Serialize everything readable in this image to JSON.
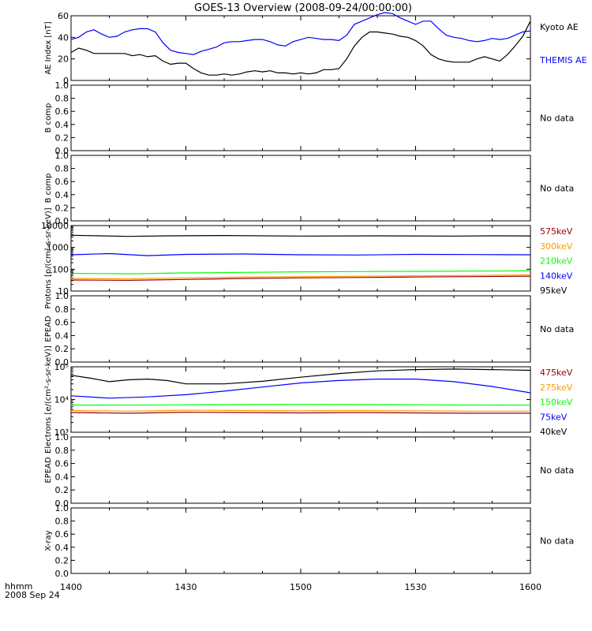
{
  "title": "GOES-13 Overview (2008-09-24/00:00:00)",
  "time_axis": {
    "ticks": [
      "1400",
      "1430",
      "1500",
      "1530",
      "1600"
    ],
    "corner_label_1": "hhmm",
    "corner_label_2": "2008 Sep 24"
  },
  "colors": {
    "black": "#000000",
    "blue": "#0000ff",
    "green": "#00ff00",
    "orange": "#ff9900",
    "red": "#ff0000",
    "darkred": "#990000"
  },
  "chart_data": [
    {
      "type": "line",
      "ylabel": "AE Index [nT]",
      "ylim": [
        0,
        60
      ],
      "yticks": [
        "0",
        "20",
        "40",
        "60"
      ],
      "x_range_minutes": [
        0,
        120
      ],
      "legend": [
        {
          "label": "Kyoto AE",
          "color": "#000000"
        },
        {
          "label": "THEMIS AE",
          "color": "#0000ff"
        }
      ],
      "series": [
        {
          "name": "Kyoto AE",
          "color": "#000000",
          "x": [
            0,
            2,
            4,
            6,
            8,
            10,
            12,
            14,
            16,
            18,
            20,
            22,
            24,
            26,
            28,
            30,
            32,
            34,
            36,
            38,
            40,
            42,
            44,
            46,
            48,
            50,
            52,
            54,
            56,
            58,
            60,
            62,
            64,
            66,
            68,
            70,
            72,
            74,
            76,
            78,
            80,
            82,
            84,
            86,
            88,
            90,
            92,
            94,
            96,
            98,
            100,
            102,
            104,
            106,
            108,
            110,
            112,
            114,
            116,
            118,
            120
          ],
          "y": [
            26,
            30,
            28,
            25,
            25,
            25,
            25,
            25,
            23,
            24,
            22,
            23,
            18,
            15,
            16,
            16,
            11,
            7,
            5,
            5,
            6,
            5,
            6,
            8,
            9,
            8,
            9,
            7,
            7,
            6,
            7,
            6,
            7,
            10,
            10,
            11,
            20,
            32,
            40,
            45,
            45,
            44,
            43,
            41,
            40,
            37,
            32,
            24,
            20,
            18,
            17,
            17,
            17,
            20,
            22,
            20,
            18,
            24,
            32,
            41,
            55
          ]
        },
        {
          "name": "THEMIS AE",
          "color": "#0000ff",
          "x": [
            0,
            2,
            4,
            6,
            8,
            10,
            12,
            14,
            16,
            18,
            20,
            22,
            24,
            26,
            28,
            30,
            32,
            34,
            36,
            38,
            40,
            42,
            44,
            46,
            48,
            50,
            52,
            54,
            56,
            58,
            60,
            62,
            64,
            66,
            68,
            70,
            72,
            74,
            76,
            78,
            80,
            82,
            84,
            86,
            88,
            90,
            92,
            94,
            96,
            98,
            100,
            102,
            104,
            106,
            108,
            110,
            112,
            114,
            116,
            118,
            120
          ],
          "y": [
            38,
            40,
            45,
            47,
            43,
            40,
            41,
            45,
            47,
            48,
            48,
            45,
            35,
            28,
            26,
            25,
            24,
            27,
            29,
            31,
            35,
            36,
            36,
            37,
            38,
            38,
            36,
            33,
            32,
            36,
            38,
            40,
            39,
            38,
            38,
            37,
            42,
            52,
            55,
            58,
            61,
            63,
            62,
            58,
            55,
            52,
            55,
            55,
            48,
            42,
            40,
            39,
            37,
            36,
            37,
            39,
            38,
            39,
            42,
            45,
            46
          ]
        }
      ]
    },
    {
      "type": "line",
      "ylabel": "B comp",
      "ylim": [
        0,
        1
      ],
      "yticks": [
        "0.0",
        "0.2",
        "0.4",
        "0.6",
        "0.8",
        "1.0"
      ],
      "status": "No data",
      "series": []
    },
    {
      "type": "line",
      "ylabel": "B comp",
      "ylim": [
        0,
        1
      ],
      "yticks": [
        "0.0",
        "0.2",
        "0.4",
        "0.6",
        "0.8",
        "1.0"
      ],
      "status": "No data",
      "series": []
    },
    {
      "type": "line",
      "ylabel": "Protons [p/(cm²-s-sr-keV)]",
      "scale": "log",
      "ylim": [
        10,
        10000
      ],
      "yticks": [
        "10",
        "100",
        "1000",
        "10000"
      ],
      "x_range_minutes": [
        0,
        120
      ],
      "legend": [
        {
          "label": "575keV",
          "color": "#990000"
        },
        {
          "label": "300keV",
          "color": "#ff9900"
        },
        {
          "label": "210keV",
          "color": "#00ff00"
        },
        {
          "label": "140keV",
          "color": "#0000ff"
        },
        {
          "label": "95keV",
          "color": "#000000"
        }
      ],
      "series": [
        {
          "name": "95keV",
          "color": "#000000",
          "x": [
            0,
            15,
            25,
            40,
            60,
            80,
            100,
            110,
            120
          ],
          "y": [
            3600,
            3200,
            3400,
            3500,
            3300,
            3400,
            3300,
            3400,
            3350
          ]
        },
        {
          "name": "140keV",
          "color": "#0000ff",
          "x": [
            0,
            10,
            20,
            30,
            45,
            60,
            75,
            90,
            105,
            120
          ],
          "y": [
            460,
            520,
            420,
            480,
            500,
            460,
            450,
            480,
            470,
            460
          ]
        },
        {
          "name": "210keV",
          "color": "#00ff00",
          "x": [
            0,
            15,
            30,
            45,
            60,
            75,
            90,
            105,
            120
          ],
          "y": [
            65,
            62,
            68,
            72,
            76,
            78,
            80,
            82,
            84
          ]
        },
        {
          "name": "300keV",
          "color": "#ff9900",
          "x": [
            0,
            15,
            30,
            45,
            60,
            75,
            90,
            105,
            120
          ],
          "y": [
            38,
            37,
            40,
            44,
            46,
            48,
            50,
            52,
            55
          ]
        },
        {
          "name": "575keV",
          "color": "#990000",
          "x": [
            0,
            15,
            30,
            45,
            60,
            75,
            90,
            105,
            120
          ],
          "y": [
            32,
            31,
            34,
            38,
            40,
            42,
            44,
            46,
            48
          ]
        }
      ]
    },
    {
      "type": "line",
      "ylabel": "EPEAD",
      "ylim": [
        0,
        1
      ],
      "yticks": [
        "0.0",
        "0.2",
        "0.4",
        "0.6",
        "0.8",
        "1.0"
      ],
      "status": "No data",
      "series": []
    },
    {
      "type": "line",
      "ylabel": "Electrons [e/(cm²-s-sr-keV)]",
      "scale": "log",
      "ylim": [
        1000,
        100000
      ],
      "yticks": [
        "10³",
        "10⁴",
        "10⁵"
      ],
      "x_range_minutes": [
        0,
        120
      ],
      "legend": [
        {
          "label": "475keV",
          "color": "#990000"
        },
        {
          "label": "275keV",
          "color": "#ff9900"
        },
        {
          "label": "150keV",
          "color": "#00ff00"
        },
        {
          "label": "75keV",
          "color": "#0000ff"
        },
        {
          "label": "40keV",
          "color": "#000000"
        }
      ],
      "series": [
        {
          "name": "40keV",
          "color": "#000000",
          "x": [
            0,
            5,
            10,
            15,
            20,
            25,
            30,
            40,
            50,
            60,
            70,
            80,
            90,
            100,
            110,
            120
          ],
          "y": [
            55000,
            45000,
            35000,
            40000,
            42000,
            38000,
            30000,
            30000,
            36000,
            48000,
            62000,
            75000,
            82000,
            85000,
            82000,
            78000
          ]
        },
        {
          "name": "75keV",
          "color": "#0000ff",
          "x": [
            0,
            10,
            20,
            30,
            40,
            50,
            60,
            70,
            80,
            90,
            100,
            110,
            120
          ],
          "y": [
            13000,
            11000,
            12000,
            14000,
            18000,
            24000,
            32000,
            38000,
            42000,
            42000,
            35000,
            25000,
            16000
          ]
        },
        {
          "name": "150keV",
          "color": "#00ff00",
          "x": [
            0,
            15,
            30,
            45,
            60,
            75,
            90,
            105,
            120
          ],
          "y": [
            6800,
            6700,
            6900,
            7000,
            7100,
            7000,
            6900,
            6800,
            6700
          ]
        },
        {
          "name": "275keV",
          "color": "#ff9900",
          "x": [
            0,
            15,
            30,
            45,
            60,
            75,
            90,
            105,
            120
          ],
          "y": [
            4600,
            4400,
            4700,
            4600,
            4500,
            4600,
            4500,
            4400,
            4400
          ]
        },
        {
          "name": "475keV",
          "color": "#990000",
          "x": [
            0,
            15,
            30,
            45,
            60,
            75,
            90,
            105,
            120
          ],
          "y": [
            4000,
            3800,
            4100,
            4000,
            3900,
            4000,
            3900,
            3800,
            3800
          ]
        }
      ]
    },
    {
      "type": "line",
      "ylabel": "EPEAD",
      "ylim": [
        0,
        1
      ],
      "yticks": [
        "0.0",
        "0.2",
        "0.4",
        "0.6",
        "0.8",
        "1.0"
      ],
      "status": "No data",
      "series": []
    },
    {
      "type": "line",
      "ylabel": "X-ray",
      "ylim": [
        0,
        1
      ],
      "yticks": [
        "0.0",
        "0.2",
        "0.4",
        "0.6",
        "0.8",
        "1.0"
      ],
      "status": "No data",
      "series": []
    }
  ]
}
